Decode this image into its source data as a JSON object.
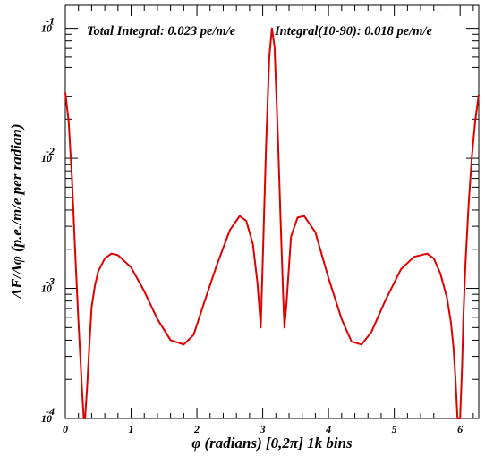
{
  "chart_data": {
    "type": "line",
    "xlabel": "φ (radians) [0,2π] 1k bins",
    "ylabel": "ΔF/Δφ (p.e./m/e per radian)",
    "xlim": [
      0,
      6.2832
    ],
    "ylim": [
      0.0001,
      0.15
    ],
    "yscale": "log",
    "grid": false,
    "x_tick_labels": [
      "0",
      "1",
      "2",
      "3",
      "4",
      "5",
      "6"
    ],
    "y_tick_labels": [
      {
        "value": 0.0001,
        "base": "10",
        "exp": "-4"
      },
      {
        "value": 0.001,
        "base": "10",
        "exp": "-3"
      },
      {
        "value": 0.01,
        "base": "10",
        "exp": "-2"
      },
      {
        "value": 0.1,
        "base": "10",
        "exp": "-1"
      }
    ],
    "annotations": [
      "Total Integral: 0.023 pe/m/e",
      "Integral(10-90): 0.018 pe/m/e"
    ],
    "line_color": "#e00000",
    "series": [
      {
        "x": [
          0.0,
          0.05,
          0.1,
          0.15,
          0.2,
          0.25,
          0.28,
          0.3,
          0.33,
          0.37,
          0.4,
          0.45,
          0.5,
          0.6,
          0.7,
          0.8,
          1.0,
          1.2,
          1.4,
          1.6,
          1.8,
          1.95,
          2.1,
          2.3,
          2.5,
          2.65,
          2.75,
          2.85,
          2.92,
          2.95,
          2.97,
          3.0,
          3.05,
          3.1,
          3.14,
          3.18,
          3.23,
          3.28,
          3.31,
          3.33,
          3.36,
          3.43,
          3.53,
          3.63,
          3.8,
          4.0,
          4.2,
          4.35,
          4.5,
          4.65,
          4.85,
          5.1,
          5.3,
          5.5,
          5.6,
          5.7,
          5.8,
          5.86,
          5.9,
          5.93,
          5.96,
          6.0,
          6.03,
          6.05,
          6.08,
          6.13,
          6.18,
          6.23,
          6.2832
        ],
        "y": [
          0.032,
          0.0195,
          0.0072,
          0.0019,
          0.00055,
          0.00018,
          0.0001,
          0.0001,
          0.00017,
          0.0004,
          0.00072,
          0.00105,
          0.00135,
          0.0017,
          0.00185,
          0.0018,
          0.00145,
          0.00095,
          0.00058,
          0.0004,
          0.00037,
          0.00044,
          0.00075,
          0.0015,
          0.0028,
          0.0036,
          0.0033,
          0.0022,
          0.0011,
          0.0007,
          0.0005,
          0.0016,
          0.012,
          0.06,
          0.1,
          0.072,
          0.015,
          0.0025,
          0.0009,
          0.0005,
          0.00075,
          0.0025,
          0.0035,
          0.0036,
          0.0027,
          0.0012,
          0.00058,
          0.00039,
          0.00037,
          0.00046,
          0.00078,
          0.0014,
          0.00175,
          0.00185,
          0.0017,
          0.0013,
          0.00085,
          0.00055,
          0.00035,
          0.0002,
          0.0001,
          0.0001,
          0.00025,
          0.0006,
          0.0015,
          0.0045,
          0.0105,
          0.0195,
          0.031
        ]
      }
    ]
  }
}
